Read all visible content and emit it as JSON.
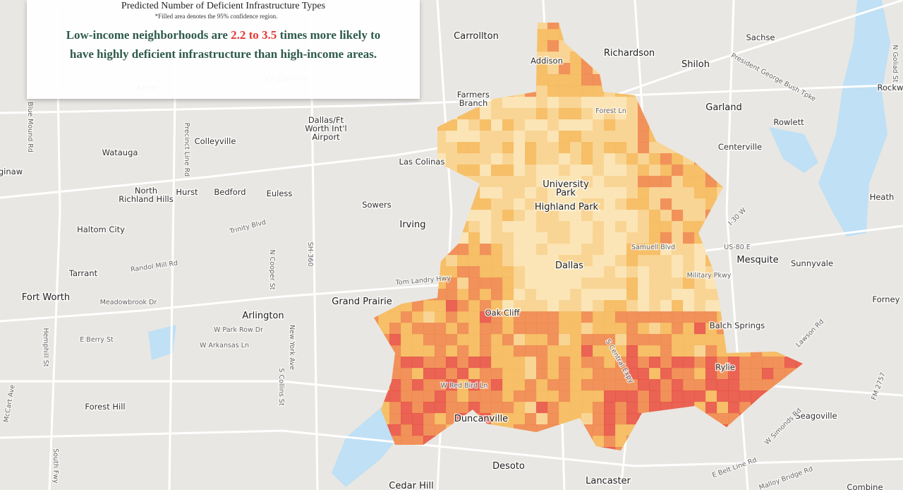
{
  "panel": {
    "title": "Predicted Number of Deficient Infrastructure Types",
    "note": "*Filled area denotes the 95% confidence region.",
    "headline": {
      "before": "Low-income neighborhoods are",
      "highlight": "2.2 to 3.5",
      "after": "times more likely to have highly deficient infrastructure than high-income areas."
    }
  },
  "places": [
    [
      "Carrollton"
    ],
    [
      "Richardson"
    ],
    [
      "Sachse"
    ],
    [
      "Addison"
    ],
    [
      "Shiloh"
    ],
    [
      "Farmers",
      "Branch"
    ],
    [
      "Garland"
    ],
    [
      "Rowlett"
    ],
    [
      "Colleyville"
    ],
    [
      "Watauga"
    ],
    [
      "Centerville"
    ],
    [
      "Las Colinas"
    ],
    [
      "University",
      "Park"
    ],
    [
      "North",
      "Richland Hills"
    ],
    [
      "Hurst"
    ],
    [
      "Bedford"
    ],
    [
      "Euless"
    ],
    [
      "Heath"
    ],
    [
      "Sowers"
    ],
    [
      "Highland Park"
    ],
    [
      "Irving"
    ],
    [
      "Haltom City"
    ],
    [
      "Mesquite"
    ],
    [
      "Sunnyvale"
    ],
    [
      "Dallas"
    ],
    [
      "Fort Worth"
    ],
    [
      "Grand Prairie"
    ],
    [
      "Arlington"
    ],
    [
      "Forney"
    ],
    [
      "Oak Cliff"
    ],
    [
      "Balch Springs"
    ],
    [
      "Forest Hill"
    ],
    [
      "Duncanville"
    ],
    [
      "Seagoville"
    ],
    [
      "Desoto"
    ],
    [
      "Lancaster"
    ],
    [
      "Cedar Hill"
    ],
    [
      "Combine"
    ],
    [
      "Keller"
    ],
    [
      "Grapevine"
    ],
    [
      "Dallas/Ft",
      "Worth Int'l",
      "Airport"
    ],
    [
      "Rockw"
    ],
    [
      "Tarrant"
    ],
    [
      "Rylie"
    ],
    [
      "ginaw"
    ]
  ],
  "roads": [
    "Trinity Blvd",
    "Randol Mill Rd",
    "Tom Landry Hwy",
    "Meadowbrook Dr",
    "W Park Row Dr",
    "W Arkansas Ln",
    "E Berry St",
    "Forest Ln",
    "Samuell Blvd",
    "Military Pkwy",
    "Lawson Rd",
    "W Simonds Rd",
    "E Belt Line Rd",
    "Malloy Bridge Rd",
    "President George Bush Tpke",
    "Precinct Line Rd",
    "Blue Mound Rd",
    "N Cooper St",
    "S Collins St",
    "New York Ave",
    "W Red Bird Ln",
    "S Central Expy",
    "I-30 W",
    "US-80 E",
    "N Goliad St",
    "FM 2757",
    "Hemphill St",
    "McCart Ave",
    "South Fwy",
    "SH-360"
  ]
}
